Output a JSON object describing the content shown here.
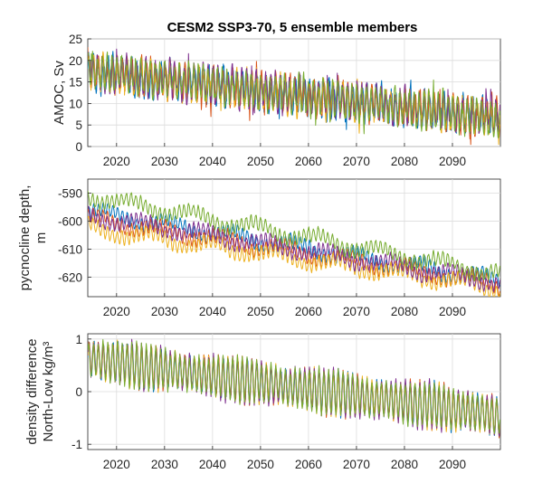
{
  "title": "CESM2 SSP3-70, 5 ensemble members",
  "colors": [
    "#0072bd",
    "#d95319",
    "#edb120",
    "#7e2f8e",
    "#77ac30"
  ],
  "chart_data": [
    {
      "type": "line",
      "ylabel": [
        "AMOC, Sv"
      ],
      "xlim": [
        2014,
        2100
      ],
      "ylim": [
        0,
        25
      ],
      "xticks": [
        2020,
        2030,
        2040,
        2050,
        2060,
        2070,
        2080,
        2090
      ],
      "yticks": [
        0,
        5,
        10,
        15,
        20,
        25
      ],
      "yticklabels": [
        "0",
        "5",
        "10",
        "15",
        "20",
        "25"
      ],
      "grid": true,
      "series_note": "5 ensemble members, annual cycle",
      "x_start": 2014,
      "x_end": 2099.9,
      "n_points": 1032,
      "trend": {
        "start": 17.5,
        "end": 6.5
      },
      "cycle_amplitude": 3.5,
      "noise": 1.3
    },
    {
      "type": "line",
      "ylabel": [
        "pycnocline depth,",
        "m"
      ],
      "xlim": [
        2014,
        2100
      ],
      "ylim": [
        -627,
        -585
      ],
      "xticks": [
        2020,
        2030,
        2040,
        2050,
        2060,
        2070,
        2080,
        2090
      ],
      "yticks": [
        -620,
        -610,
        -600,
        -590
      ],
      "yticklabels": [
        "-620",
        "-610",
        "-600",
        "-590"
      ],
      "grid": true,
      "x_start": 2014,
      "x_end": 2099.9,
      "n_points": 1032,
      "trend": {
        "start": -598,
        "end": -622
      },
      "member_offsets": [
        1.5,
        -1.0,
        -4.5,
        0.0,
        7.0
      ],
      "cycle_amplitude": 2.2,
      "noise": 0.5
    },
    {
      "type": "line",
      "ylabel": [
        "density difference",
        "North-Low kg/m³"
      ],
      "xlim": [
        2014,
        2100
      ],
      "ylim": [
        -1.1,
        1.1
      ],
      "xticks": [
        2020,
        2030,
        2040,
        2050,
        2060,
        2070,
        2080,
        2090
      ],
      "yticks": [
        -1,
        0,
        1
      ],
      "yticklabels": [
        "-1",
        "0",
        "1"
      ],
      "grid": true,
      "x_start": 2014,
      "x_end": 2099.9,
      "n_points": 516,
      "trend": {
        "start": 0.62,
        "end": -0.45
      },
      "cycle_amplitude": 0.38,
      "noise": 0.05
    }
  ]
}
